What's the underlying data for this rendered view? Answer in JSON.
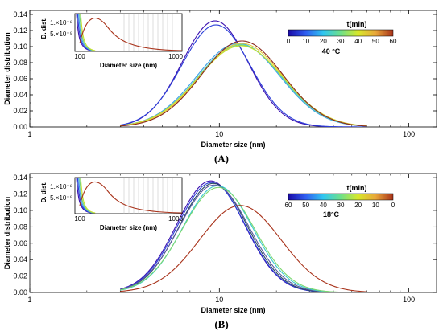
{
  "chart_data": [
    {
      "type": "line",
      "panel_label": "(A)",
      "xlabel": "Diameter size (nm)",
      "ylabel": "Diameter distribution",
      "xscale": "log",
      "xlim": [
        1,
        140
      ],
      "ylim": [
        0,
        0.145
      ],
      "xticks": [
        1,
        10,
        100
      ],
      "xtick_labels": [
        "1",
        "10",
        "100"
      ],
      "yticks": [
        0,
        0.02,
        0.04,
        0.06,
        0.08,
        0.1,
        0.12,
        0.14
      ],
      "ytick_labels": [
        "0.00",
        "0.02",
        "0.04",
        "0.06",
        "0.08",
        "0.10",
        "0.12",
        "0.14"
      ],
      "condition": "40 °C",
      "colorbar": {
        "title": "t(min)",
        "tick_labels": [
          "0",
          "10",
          "20",
          "30",
          "40",
          "50",
          "60"
        ],
        "reversed": false,
        "colors": [
          "#1a0aa8",
          "#2f5ef0",
          "#2fc6f0",
          "#6ee08a",
          "#d8e82a",
          "#e8a63a",
          "#a8321a"
        ]
      },
      "series": [
        {
          "peak": 9.5,
          "sigma": 0.175,
          "color": "#3a0fb0",
          "values_peak": 0.132
        },
        {
          "peak": 9.6,
          "sigma": 0.18,
          "color": "#2b3fd8",
          "values_peak": 0.127
        },
        {
          "peak": 12.6,
          "sigma": 0.22,
          "color": "#3aa0e8",
          "values_peak": 0.104
        },
        {
          "peak": 12.8,
          "sigma": 0.22,
          "color": "#5ac8c8",
          "values_peak": 0.103
        },
        {
          "peak": 12.9,
          "sigma": 0.223,
          "color": "#7cd870",
          "values_peak": 0.102
        },
        {
          "peak": 13.0,
          "sigma": 0.225,
          "color": "#c6e02e",
          "values_peak": 0.101
        },
        {
          "peak": 13.1,
          "sigma": 0.22,
          "color": "#e6c83a",
          "values_peak": 0.104
        },
        {
          "peak": 13.2,
          "sigma": 0.215,
          "color": "#8a2a1e",
          "values_peak": 0.107
        }
      ],
      "inset": {
        "ylabel": "D. dist.",
        "xlabel": "Diameter size (nm)",
        "yticks": [
          "1.×10⁻⁸",
          "5.×10⁻⁹"
        ],
        "xtick_labels": [
          "100",
          "1000"
        ]
      }
    },
    {
      "type": "line",
      "panel_label": "(B)",
      "xlabel": "Diameter size (nm)",
      "ylabel": "Diameter distribution",
      "xscale": "log",
      "xlim": [
        1,
        140
      ],
      "ylim": [
        0,
        0.145
      ],
      "xticks": [
        1,
        10,
        100
      ],
      "xtick_labels": [
        "1",
        "10",
        "100"
      ],
      "yticks": [
        0,
        0.02,
        0.04,
        0.06,
        0.08,
        0.1,
        0.12,
        0.14
      ],
      "ytick_labels": [
        "0.00",
        "0.02",
        "0.04",
        "0.06",
        "0.08",
        "0.10",
        "0.12",
        "0.14"
      ],
      "condition": "18°C",
      "colorbar": {
        "title": "t(min)",
        "tick_labels": [
          "60",
          "50",
          "40",
          "30",
          "20",
          "10",
          "0"
        ],
        "reversed": true,
        "colors": [
          "#1a0aa8",
          "#2f5ef0",
          "#2fc6f0",
          "#6ee08a",
          "#d8e82a",
          "#e8a63a",
          "#a8321a"
        ]
      },
      "series": [
        {
          "peak": 9.0,
          "sigma": 0.18,
          "color": "#3a0fb0",
          "values_peak": 0.136
        },
        {
          "peak": 9.1,
          "sigma": 0.18,
          "color": "#2b3fd8",
          "values_peak": 0.134
        },
        {
          "peak": 9.3,
          "sigma": 0.18,
          "color": "#2a4a60",
          "values_peak": 0.133
        },
        {
          "peak": 9.4,
          "sigma": 0.185,
          "color": "#5a5aa0",
          "values_peak": 0.131
        },
        {
          "peak": 9.8,
          "sigma": 0.185,
          "color": "#3ac8d0",
          "values_peak": 0.13
        },
        {
          "peak": 9.9,
          "sigma": 0.19,
          "color": "#7cd870",
          "values_peak": 0.128
        },
        {
          "peak": 12.9,
          "sigma": 0.215,
          "color": "#a8321a",
          "values_peak": 0.106
        }
      ],
      "inset": {
        "ylabel": "D. dist.",
        "xlabel": "Diameter size (nm)",
        "yticks": [
          "1.×10⁻⁸",
          "5.×10⁻⁹"
        ],
        "xtick_labels": [
          "100",
          "1000"
        ]
      }
    }
  ]
}
